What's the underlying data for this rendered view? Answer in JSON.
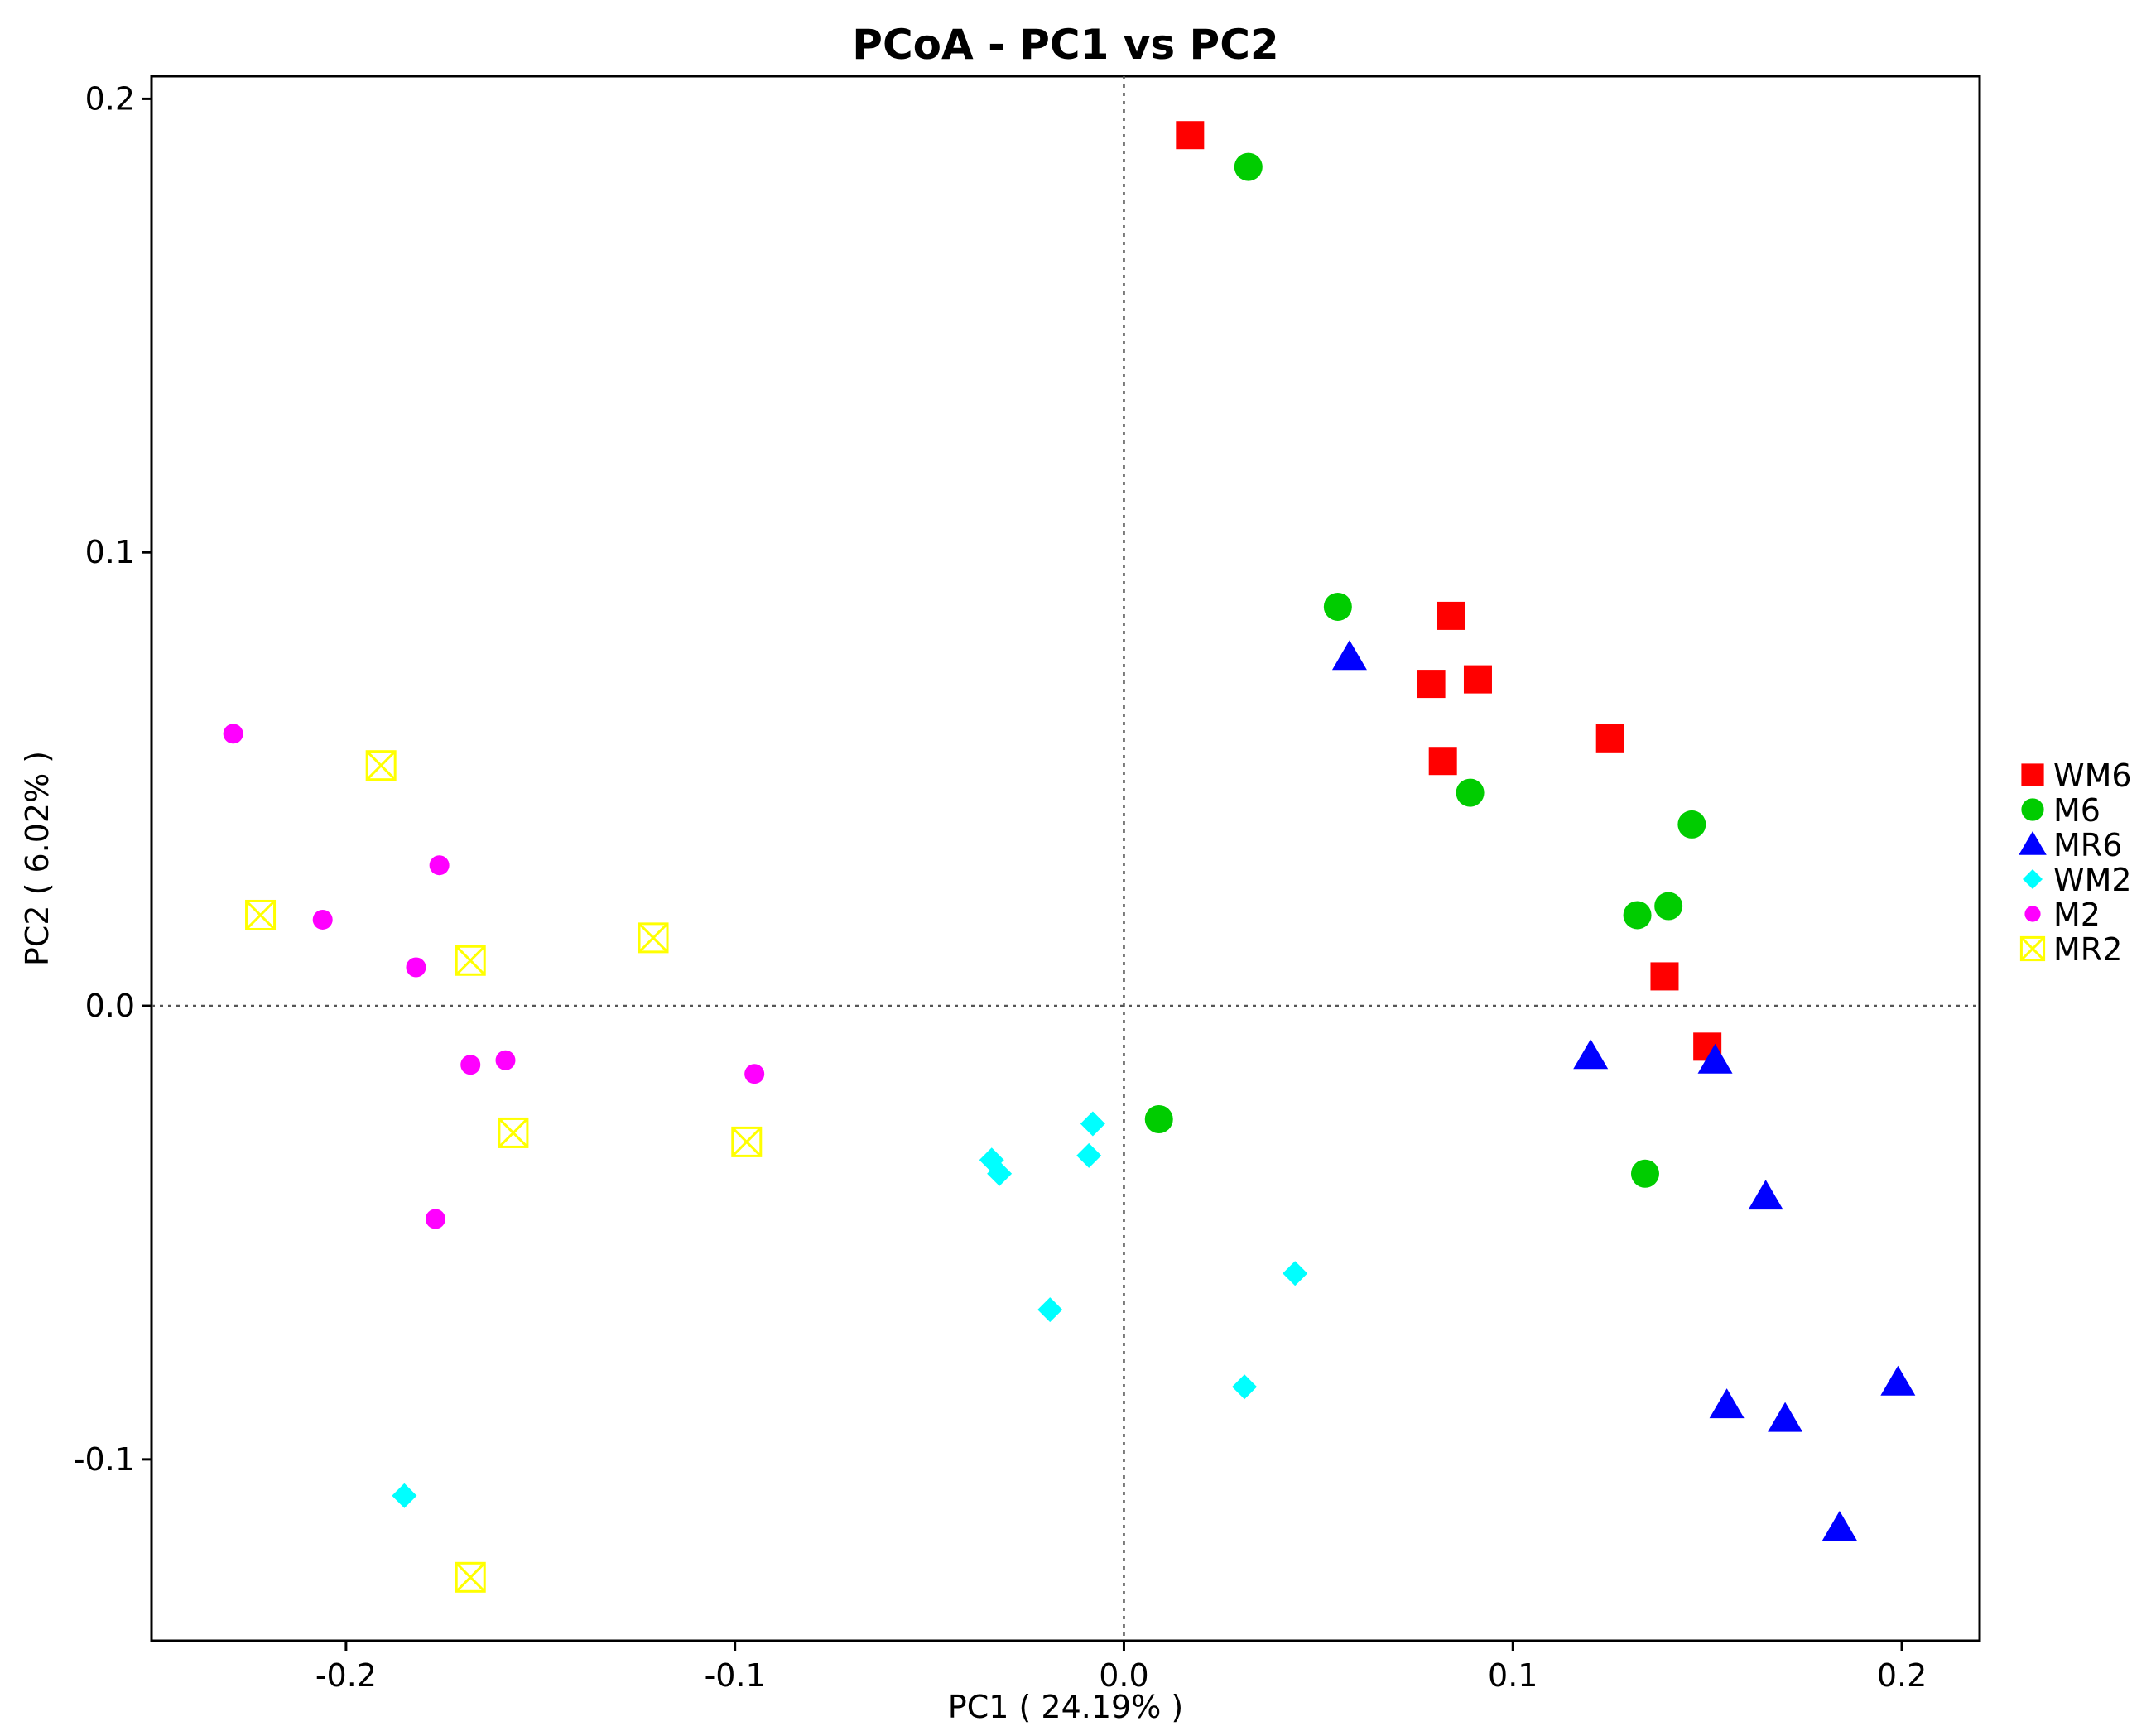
{
  "chart_data": {
    "type": "scatter",
    "title": "PCoA - PC1 vs PC2",
    "xlabel": "PC1 ( 24.19% )",
    "ylabel": "PC2 ( 6.02% )",
    "xlim": [
      -0.25,
      0.22
    ],
    "ylim": [
      -0.14,
      0.205
    ],
    "x_ticks": [
      -0.2,
      -0.1,
      0.0,
      0.1,
      0.2
    ],
    "x_tick_labels": [
      "-0.2",
      "-0.1",
      "0.0",
      "0.1",
      "0.2"
    ],
    "y_ticks": [
      -0.1,
      0.0,
      0.1,
      0.2
    ],
    "y_tick_labels": [
      "-0.1",
      "0.0",
      "0.1",
      "0.2"
    ],
    "reference_lines": {
      "x": 0,
      "y": 0,
      "style": "dotted"
    },
    "grid": false,
    "legend_position": "right",
    "series": [
      {
        "name": "WM6",
        "marker": "square",
        "color": "#ff0000",
        "points": [
          [
            0.017,
            0.192
          ],
          [
            0.084,
            0.086
          ],
          [
            0.079,
            0.071
          ],
          [
            0.091,
            0.072
          ],
          [
            0.082,
            0.054
          ],
          [
            0.125,
            0.059
          ],
          [
            0.139,
            0.0065
          ],
          [
            0.15,
            -0.009
          ]
        ]
      },
      {
        "name": "M6",
        "marker": "circle",
        "color": "#00cc00",
        "points": [
          [
            0.032,
            0.185
          ],
          [
            0.055,
            0.088
          ],
          [
            0.089,
            0.047
          ],
          [
            0.146,
            0.04
          ],
          [
            0.132,
            0.02
          ],
          [
            0.14,
            0.022
          ],
          [
            0.009,
            -0.025
          ],
          [
            0.134,
            -0.037
          ]
        ]
      },
      {
        "name": "MR6",
        "marker": "triangle",
        "color": "#0000ff",
        "points": [
          [
            0.058,
            0.077
          ],
          [
            0.12,
            -0.011
          ],
          [
            0.152,
            -0.012
          ],
          [
            0.165,
            -0.042
          ],
          [
            0.155,
            -0.088
          ],
          [
            0.17,
            -0.091
          ],
          [
            0.199,
            -0.083
          ],
          [
            0.184,
            -0.115
          ]
        ]
      },
      {
        "name": "WM2",
        "marker": "diamond",
        "color": "#00ffff",
        "points": [
          [
            -0.034,
            -0.034
          ],
          [
            -0.032,
            -0.037
          ],
          [
            -0.008,
            -0.026
          ],
          [
            -0.009,
            -0.033
          ],
          [
            -0.019,
            -0.067
          ],
          [
            0.044,
            -0.059
          ],
          [
            0.031,
            -0.084
          ],
          [
            -0.185,
            -0.108
          ]
        ]
      },
      {
        "name": "M2",
        "marker": "small-circle",
        "color": "#ff00ff",
        "points": [
          [
            -0.229,
            0.06
          ],
          [
            -0.176,
            0.031
          ],
          [
            -0.206,
            0.019
          ],
          [
            -0.182,
            0.0085
          ],
          [
            -0.168,
            -0.013
          ],
          [
            -0.159,
            -0.012
          ],
          [
            -0.095,
            -0.015
          ],
          [
            -0.177,
            -0.047
          ]
        ]
      },
      {
        "name": "MR2",
        "marker": "boxed-x",
        "color": "#ffff00",
        "points": [
          [
            -0.191,
            0.053
          ],
          [
            -0.222,
            0.02
          ],
          [
            -0.168,
            0.01
          ],
          [
            -0.121,
            0.015
          ],
          [
            -0.157,
            -0.028
          ],
          [
            -0.097,
            -0.03
          ],
          [
            -0.168,
            -0.126
          ]
        ]
      }
    ]
  }
}
